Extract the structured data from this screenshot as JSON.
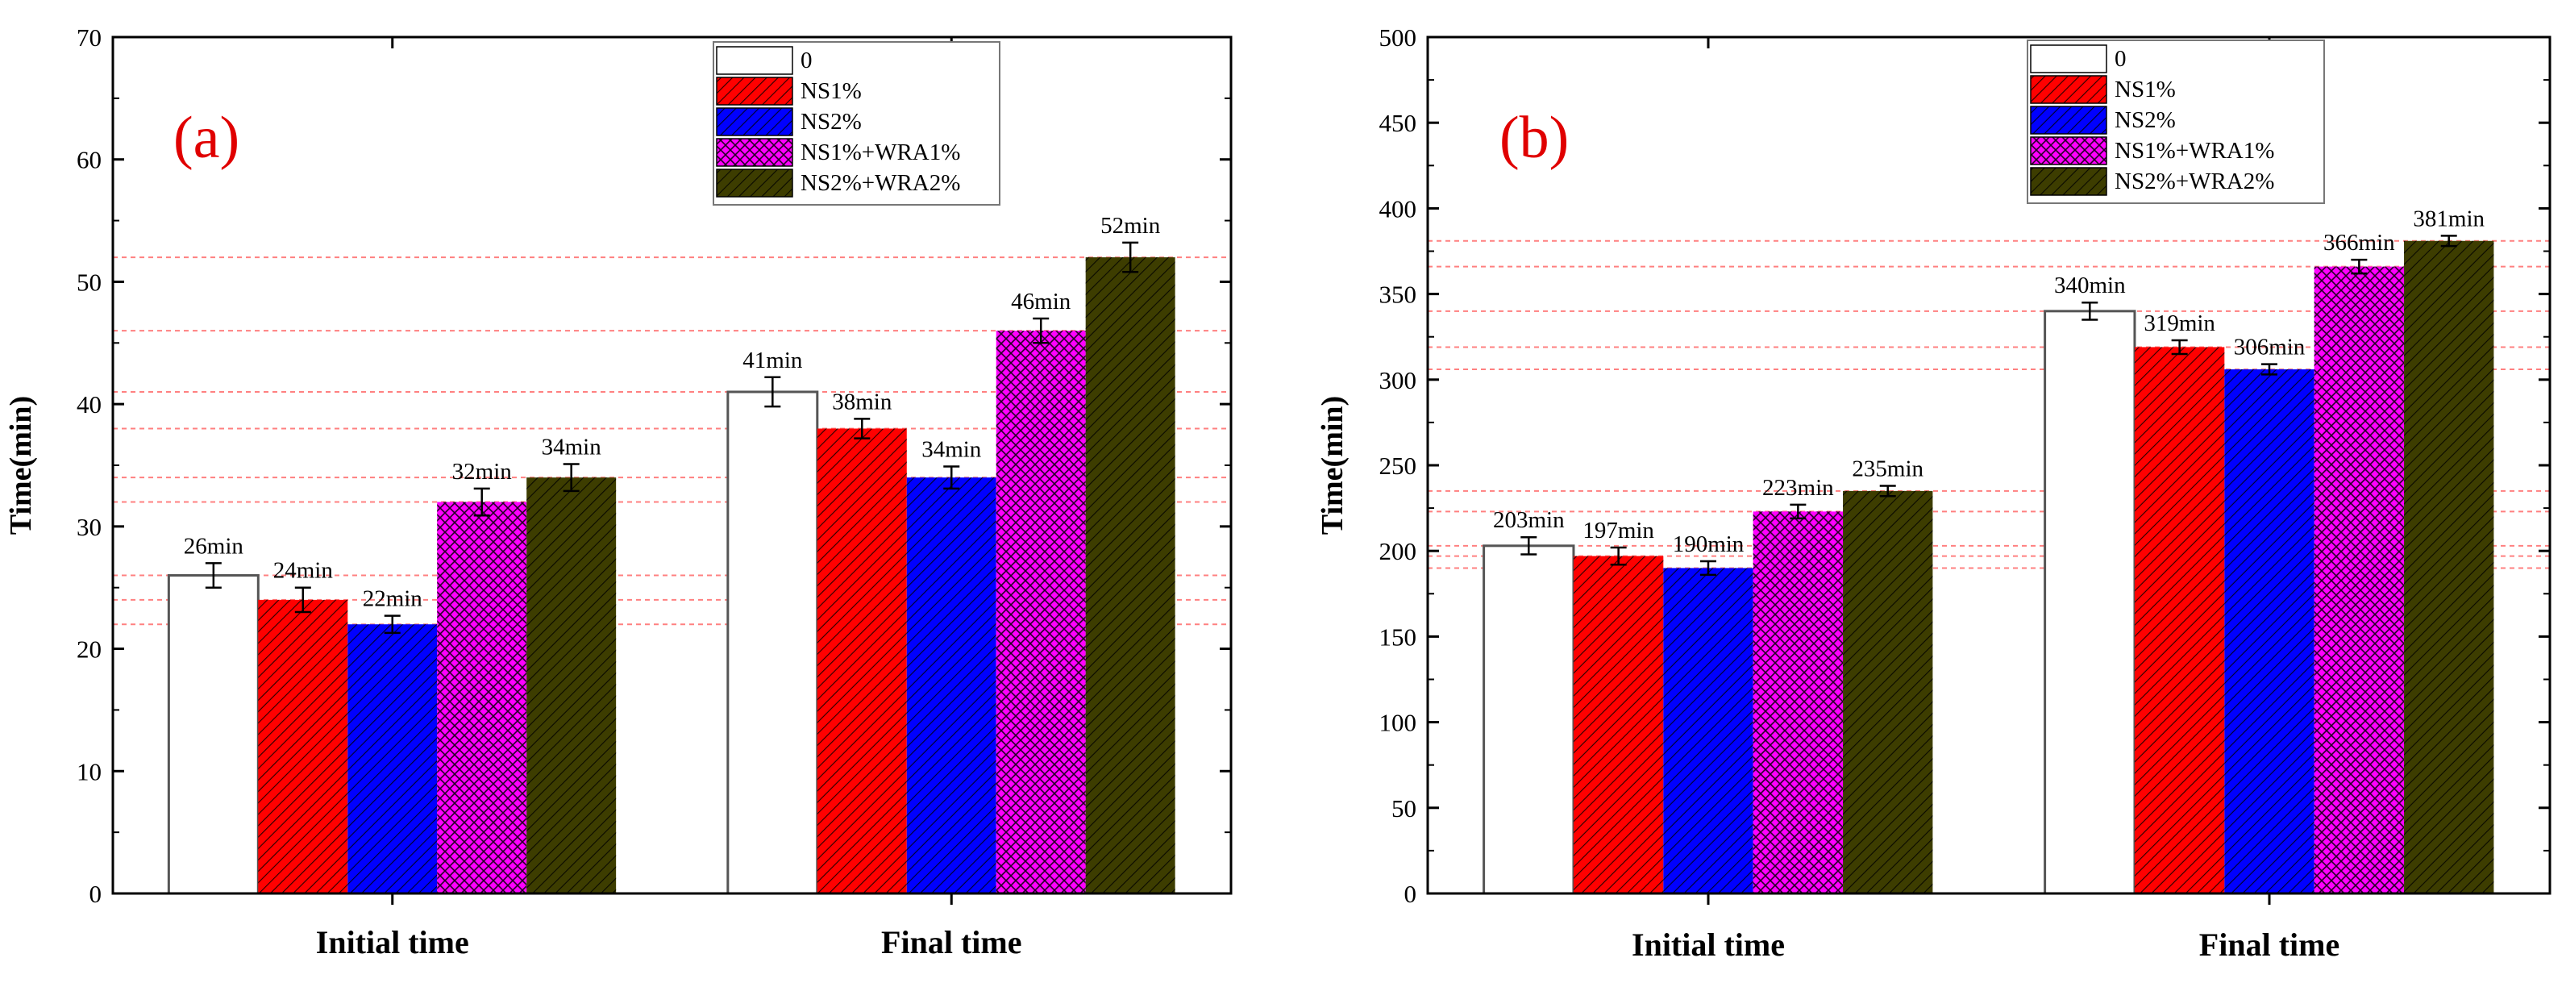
{
  "chart_data": [
    {
      "type": "bar",
      "panel_label": "(a)",
      "ylabel": "Time(min)",
      "xlabel": "",
      "ylim": [
        0,
        70
      ],
      "yticks": [
        "0",
        "10",
        "20",
        "30",
        "40",
        "50",
        "60",
        "70"
      ],
      "categories": [
        "Initial time",
        "Final time"
      ],
      "series": [
        {
          "name": "0",
          "values": [
            26,
            41
          ],
          "errors": [
            1.0,
            1.2
          ],
          "labels": [
            "26min",
            "41min"
          ]
        },
        {
          "name": "NS1%",
          "values": [
            24,
            38
          ],
          "errors": [
            1.0,
            0.8
          ],
          "labels": [
            "24min",
            "38min"
          ]
        },
        {
          "name": "NS2%",
          "values": [
            22,
            34
          ],
          "errors": [
            0.7,
            0.9
          ],
          "labels": [
            "22min",
            "34min"
          ]
        },
        {
          "name": "NS1%+WRA1%",
          "values": [
            32,
            46
          ],
          "errors": [
            1.1,
            1.0
          ],
          "labels": [
            "32min",
            "46min"
          ]
        },
        {
          "name": "NS2%+WRA2%",
          "values": [
            34,
            52
          ],
          "errors": [
            1.1,
            1.2
          ],
          "labels": [
            "34min",
            "52min"
          ]
        }
      ],
      "reference_lines": [
        52,
        46,
        41,
        38,
        34,
        32,
        26,
        24,
        22
      ],
      "legend_position": "top-right"
    },
    {
      "type": "bar",
      "panel_label": "(b)",
      "ylabel": "Time(min)",
      "xlabel": "",
      "ylim": [
        0,
        500
      ],
      "yticks": [
        "0",
        "50",
        "100",
        "150",
        "200",
        "250",
        "300",
        "350",
        "400",
        "450",
        "500"
      ],
      "categories": [
        "Initial time",
        "Final time"
      ],
      "series": [
        {
          "name": "0",
          "values": [
            203,
            340
          ],
          "errors": [
            5,
            5
          ],
          "labels": [
            "203min",
            "340min"
          ]
        },
        {
          "name": "NS1%",
          "values": [
            197,
            319
          ],
          "errors": [
            5,
            4
          ],
          "labels": [
            "197min",
            "319min"
          ]
        },
        {
          "name": "NS2%",
          "values": [
            190,
            306
          ],
          "errors": [
            4,
            3
          ],
          "labels": [
            "190min",
            "306min"
          ]
        },
        {
          "name": "NS1%+WRA1%",
          "values": [
            223,
            366
          ],
          "errors": [
            4,
            4
          ],
          "labels": [
            "223min",
            "366min"
          ]
        },
        {
          "name": "NS2%+WRA2%",
          "values": [
            235,
            381
          ],
          "errors": [
            3,
            3
          ],
          "labels": [
            "235min",
            "381min"
          ]
        }
      ],
      "reference_lines": [
        381,
        366,
        340,
        319,
        306,
        235,
        223,
        203,
        197,
        190
      ],
      "legend_position": "top-right"
    }
  ],
  "colors": {
    "series": [
      "#ffffff",
      "#ff0000",
      "#0000ff",
      "#ff00ff",
      "#3d3d00"
    ],
    "hatch": [
      "none",
      "diag",
      "diag",
      "cross",
      "diag"
    ],
    "reference_line": "#ff8080",
    "panel_label": "#e00000"
  }
}
